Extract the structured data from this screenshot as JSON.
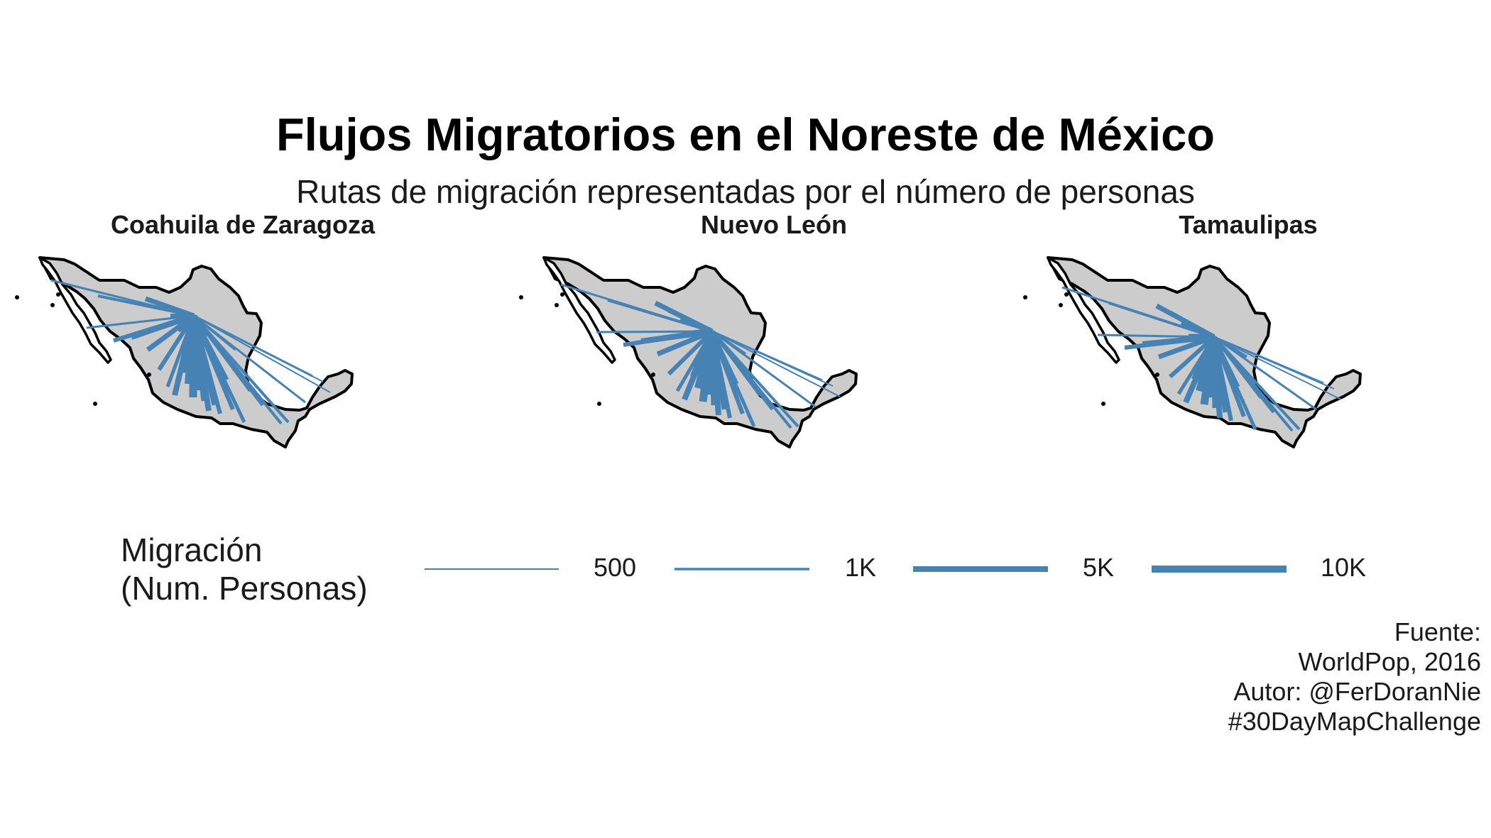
{
  "title": "Flujos Migratorios en el Noreste de México",
  "subtitle": "Rutas de migración representadas por el número de personas",
  "colors": {
    "route": "#4682B4",
    "land": "#CCCCCC",
    "border": "#000000"
  },
  "panels": [
    {
      "label": "Coahuila de Zaragoza"
    },
    {
      "label": "Nuevo León"
    },
    {
      "label": "Tamaulipas"
    }
  ],
  "legend": {
    "title_line1": "Migración",
    "title_line2": "(Num. Personas)",
    "items": [
      {
        "label": "500",
        "value": 500
      },
      {
        "label": "1K",
        "value": 1000
      },
      {
        "label": "5K",
        "value": 5000
      },
      {
        "label": "10K",
        "value": 10000
      }
    ]
  },
  "caption": {
    "line1": "Fuente:",
    "line2": "WorldPop, 2016",
    "line3": "Autor:  @FerDoranNie",
    "line4": "#30DayMapChallenge"
  }
}
